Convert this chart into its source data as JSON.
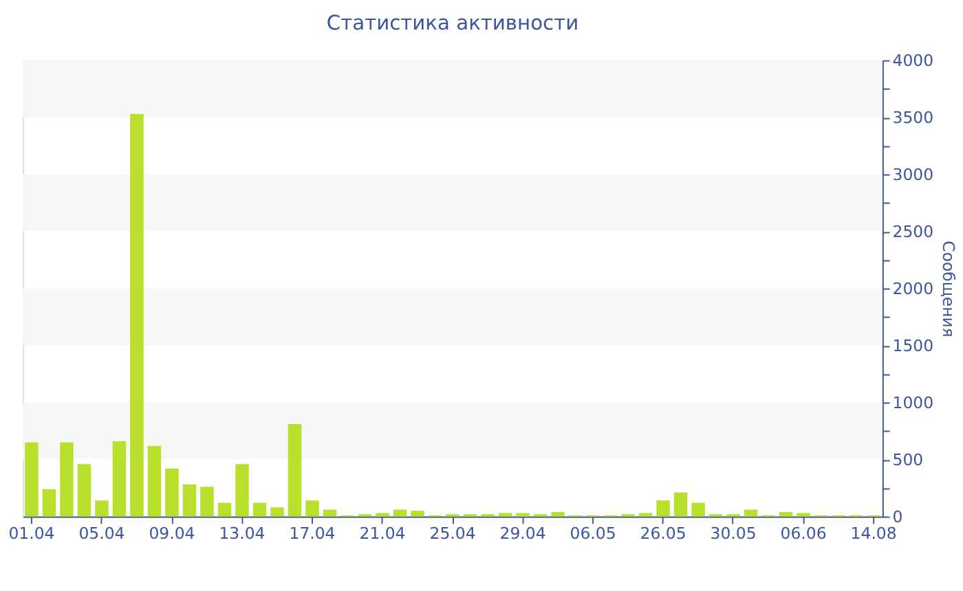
{
  "chart_data": {
    "type": "bar",
    "title": "Статистика активности",
    "ylabel": "Сообщения",
    "categories": [
      "01.04",
      null,
      null,
      null,
      "05.04",
      null,
      null,
      null,
      "09.04",
      null,
      null,
      null,
      "13.04",
      null,
      null,
      null,
      "17.04",
      null,
      null,
      null,
      "21.04",
      null,
      null,
      null,
      "25.04",
      null,
      null,
      null,
      "29.04",
      null,
      null,
      null,
      "06.05",
      null,
      null,
      null,
      "26.05",
      null,
      null,
      null,
      "30.05",
      null,
      null,
      null,
      "06.06",
      null,
      null,
      null,
      "14.08"
    ],
    "series": [
      {
        "color": "#b8e02c",
        "values": [
          650,
          240,
          650,
          460,
          140,
          660,
          3530,
          620,
          420,
          280,
          260,
          120,
          460,
          120,
          80,
          810,
          140,
          60,
          10,
          20,
          30,
          60,
          50,
          10,
          20,
          20,
          20,
          30,
          30,
          20,
          40,
          10,
          10,
          10,
          20,
          30,
          140,
          210,
          120,
          20,
          20,
          60,
          10,
          40,
          30,
          10,
          10,
          10,
          10
        ]
      }
    ],
    "ylim": [
      0,
      4000
    ],
    "yticks": [
      0,
      {
        "value": 250,
        "label": null
      },
      500,
      {
        "value": 750,
        "label": null
      },
      1000,
      {
        "value": 1250,
        "label": null
      },
      1500,
      {
        "value": 1750,
        "label": null
      },
      2000,
      {
        "value": 2250,
        "label": null
      },
      2500,
      {
        "value": 2750,
        "label": null
      },
      3000,
      {
        "value": 3250,
        "label": null
      },
      3500,
      {
        "value": 3750,
        "label": null
      },
      4000
    ],
    "bands": [
      {
        "axis": "y",
        "from": 500,
        "to": 1000,
        "color": "#f7f7f7"
      },
      {
        "axis": "y",
        "from": 1500,
        "to": 2000,
        "color": "#f7f7f7"
      },
      {
        "axis": "y",
        "from": 2500,
        "to": 3000,
        "color": "#f7f7f7"
      },
      {
        "axis": "y",
        "from": 3500,
        "to": 4000,
        "color": "#f7f7f7"
      }
    ]
  }
}
